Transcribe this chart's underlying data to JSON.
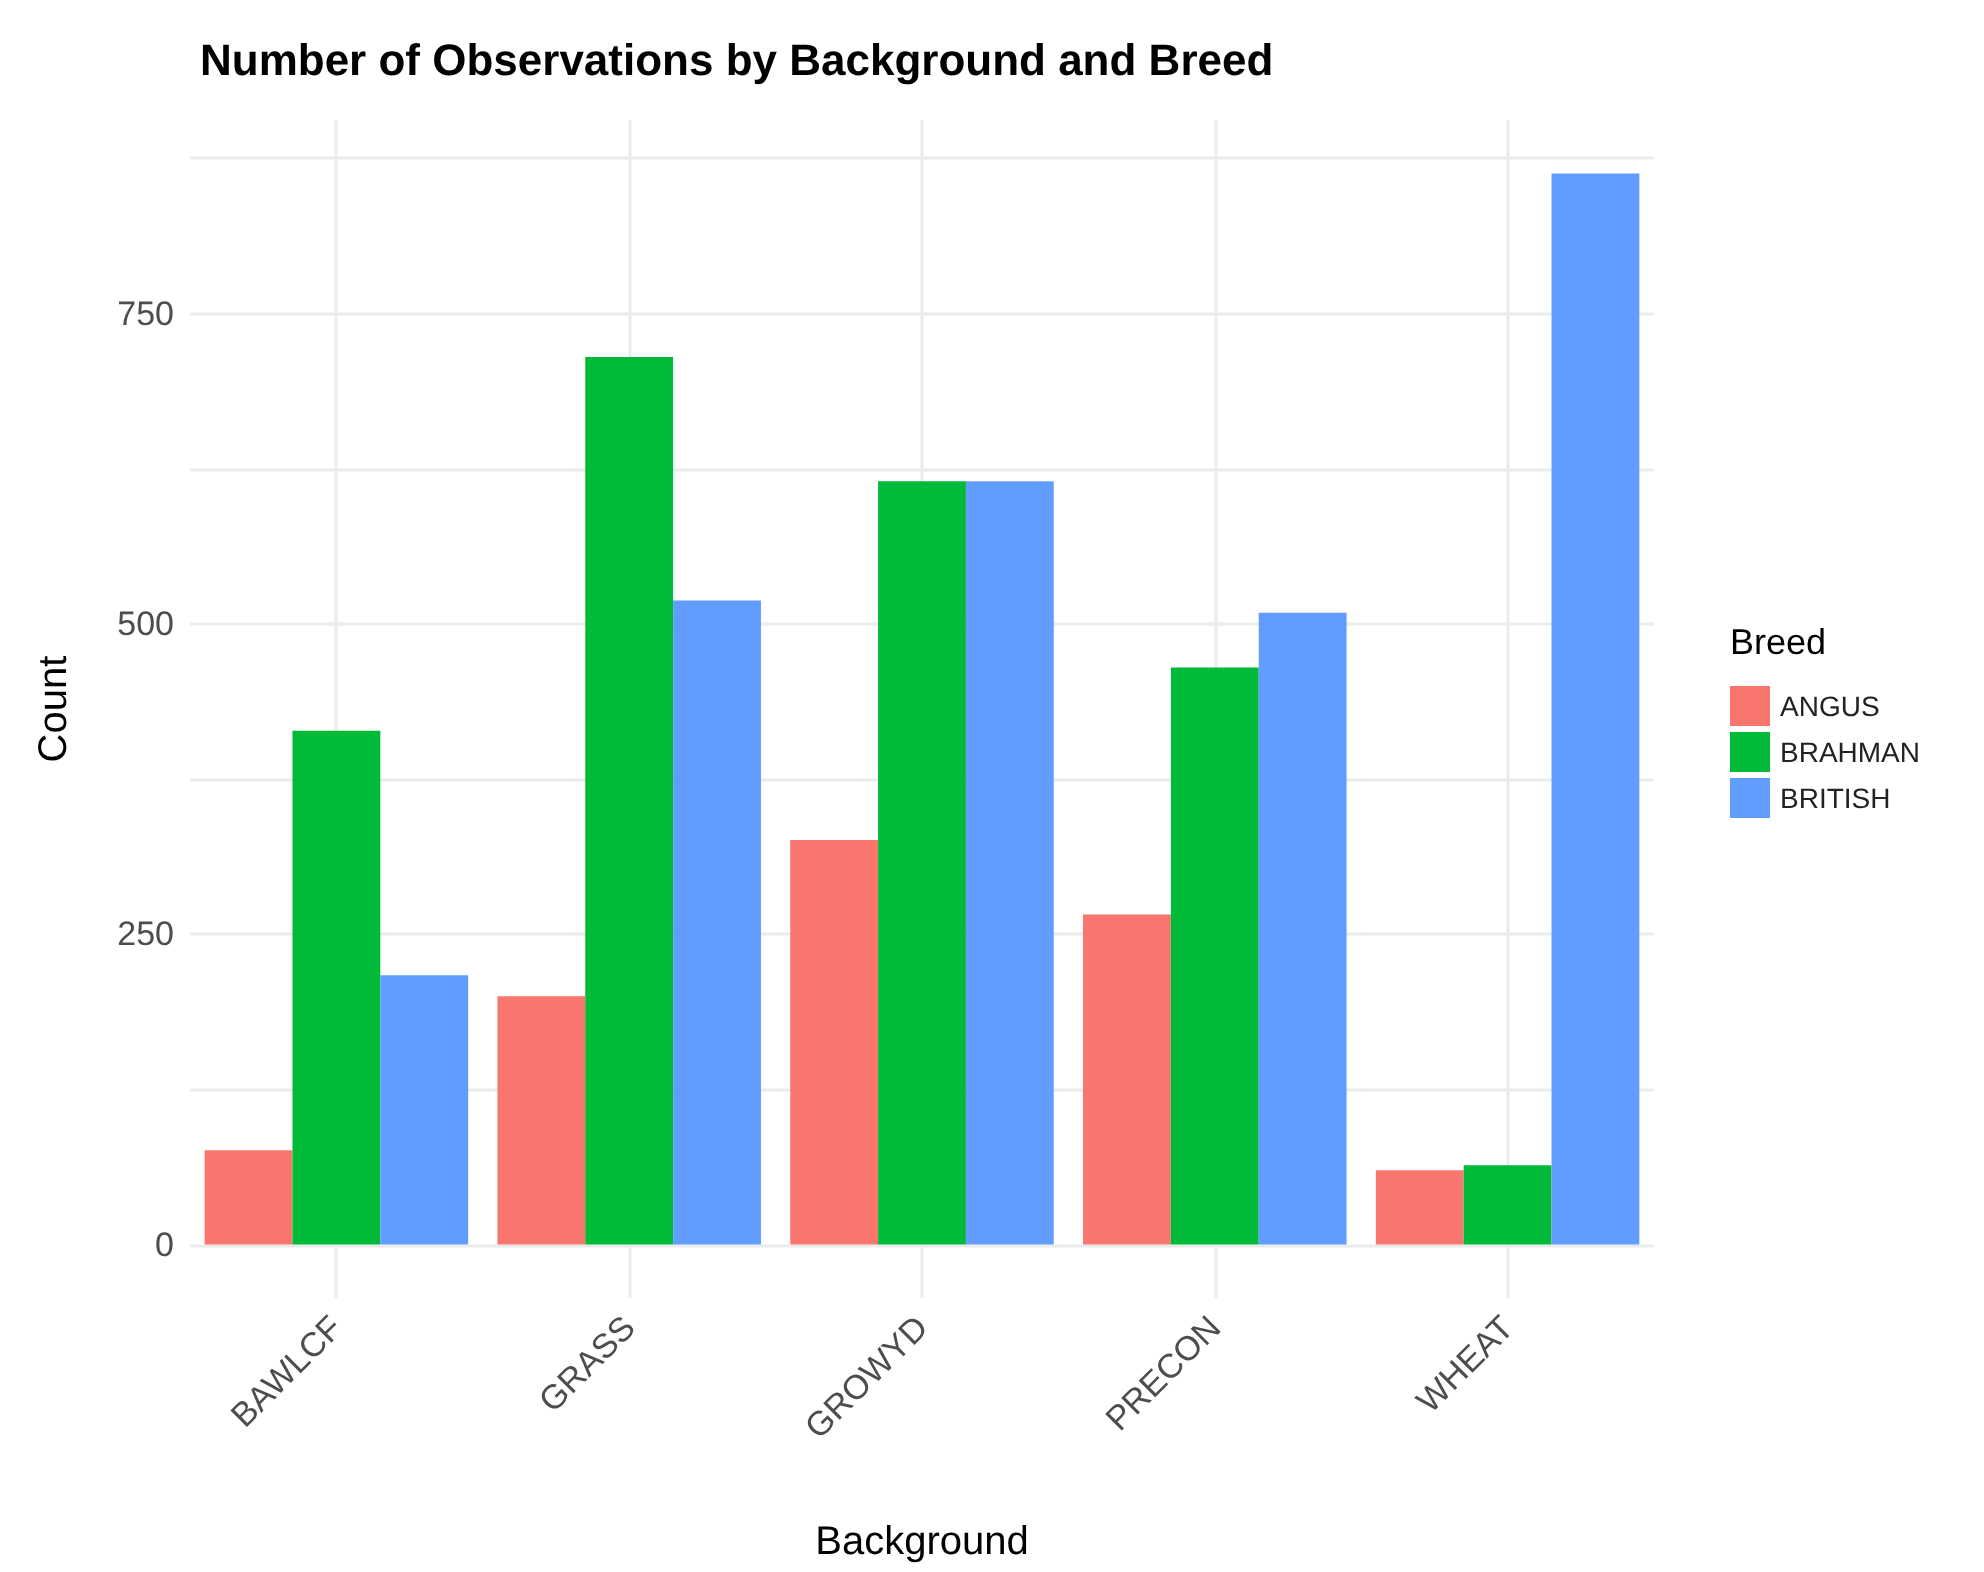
{
  "chart_data": {
    "type": "bar",
    "title": "Number of Observations by Background and Breed",
    "xlabel": "Background",
    "ylabel": "Count",
    "legend_title": "Breed",
    "categories": [
      "BAWLCF",
      "GRASS",
      "GROWYD",
      "PRECON",
      "WHEAT"
    ],
    "series": [
      {
        "name": "ANGUS",
        "color": "#f8766d",
        "values": [
          76,
          200,
          326,
          266,
          60
        ]
      },
      {
        "name": "BRAHMAN",
        "color": "#00ba38",
        "values": [
          414,
          715,
          615,
          465,
          64
        ]
      },
      {
        "name": "BRITISH",
        "color": "#619cff",
        "values": [
          217,
          519,
          615,
          509,
          863
        ]
      }
    ],
    "ylim": [
      -43,
      906
    ],
    "yticks": [
      0,
      {
        "value": 125,
        "label": null
      },
      250,
      {
        "value": 375,
        "label": null
      },
      500,
      {
        "value": 625,
        "label": null
      },
      750,
      {
        "value": 875,
        "label": null
      }
    ],
    "grid": true,
    "legend": "right"
  }
}
